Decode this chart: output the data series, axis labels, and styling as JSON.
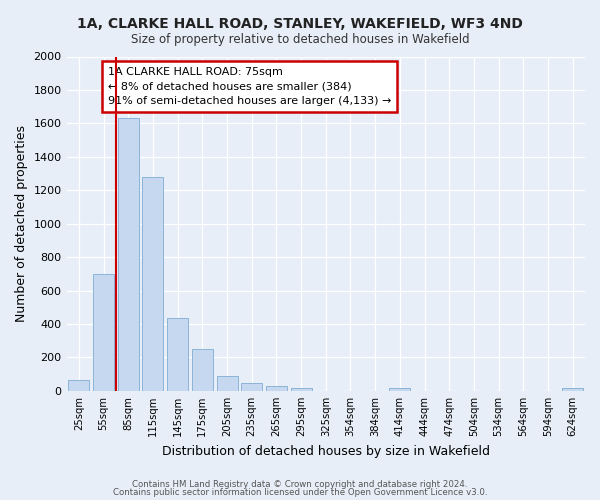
{
  "title1": "1A, CLARKE HALL ROAD, STANLEY, WAKEFIELD, WF3 4ND",
  "title2": "Size of property relative to detached houses in Wakefield",
  "xlabel": "Distribution of detached houses by size in Wakefield",
  "ylabel": "Number of detached properties",
  "bar_labels": [
    "25sqm",
    "55sqm",
    "85sqm",
    "115sqm",
    "145sqm",
    "175sqm",
    "205sqm",
    "235sqm",
    "265sqm",
    "295sqm",
    "325sqm",
    "354sqm",
    "384sqm",
    "414sqm",
    "444sqm",
    "474sqm",
    "504sqm",
    "534sqm",
    "564sqm",
    "594sqm",
    "624sqm"
  ],
  "bar_values": [
    65,
    700,
    1630,
    1280,
    435,
    250,
    90,
    50,
    30,
    20,
    0,
    0,
    0,
    15,
    0,
    0,
    0,
    0,
    0,
    0,
    15
  ],
  "bar_color": "#c5d8f0",
  "bar_edge_color": "#8ab4d8",
  "vline_color": "#cc0000",
  "annotation_title": "1A CLARKE HALL ROAD: 75sqm",
  "annotation_line1": "← 8% of detached houses are smaller (384)",
  "annotation_line2": "91% of semi-detached houses are larger (4,133) →",
  "annotation_box_edge_color": "#cc0000",
  "ylim": [
    0,
    2000
  ],
  "yticks": [
    0,
    200,
    400,
    600,
    800,
    1000,
    1200,
    1400,
    1600,
    1800,
    2000
  ],
  "footer1": "Contains HM Land Registry data © Crown copyright and database right 2024.",
  "footer2": "Contains public sector information licensed under the Open Government Licence v3.0.",
  "bg_color": "#e8eef8",
  "plot_bg_color": "#e8eef8"
}
